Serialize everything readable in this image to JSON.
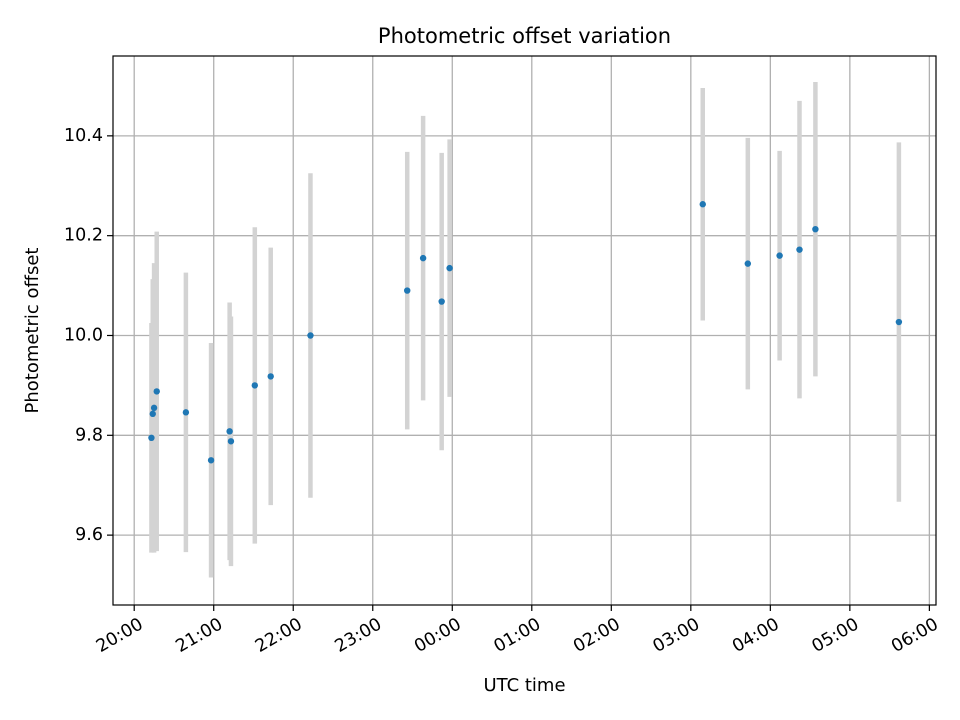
{
  "chart_data": {
    "type": "scatter",
    "title": "Photometric offset variation",
    "xlabel": "UTC time",
    "ylabel": "Photometric offset",
    "x_ticks": [
      "20:00",
      "21:00",
      "22:00",
      "23:00",
      "00:00",
      "01:00",
      "02:00",
      "03:00",
      "04:00",
      "05:00",
      "06:00"
    ],
    "xlim": [
      "19:44",
      "06:05"
    ],
    "y_ticks": [
      "9.6",
      "9.8",
      "10.0",
      "10.2",
      "10.4"
    ],
    "ylim": [
      9.46,
      10.56
    ],
    "grid": true,
    "colors": {
      "marker": "#1f77b4",
      "errorbar": "#d3d3d3",
      "grid": "#b0b0b0"
    },
    "points": [
      {
        "time": "20:13",
        "y": 9.795,
        "err": 0.23
      },
      {
        "time": "20:14",
        "y": 9.843,
        "err": 0.27
      },
      {
        "time": "20:15",
        "y": 9.855,
        "err": 0.29
      },
      {
        "time": "20:17",
        "y": 9.888,
        "err": 0.32
      },
      {
        "time": "20:39",
        "y": 9.846,
        "err": 0.28
      },
      {
        "time": "20:58",
        "y": 9.75,
        "err": 0.235
      },
      {
        "time": "21:12",
        "y": 9.808,
        "err": 0.258
      },
      {
        "time": "21:13",
        "y": 9.788,
        "err": 0.25
      },
      {
        "time": "21:31",
        "y": 9.9,
        "err": 0.317
      },
      {
        "time": "21:43",
        "y": 9.918,
        "err": 0.258
      },
      {
        "time": "22:13",
        "y": 10.0,
        "err": 0.325
      },
      {
        "time": "23:26",
        "y": 10.09,
        "err": 0.278
      },
      {
        "time": "23:38",
        "y": 10.155,
        "err": 0.285
      },
      {
        "time": "23:52",
        "y": 10.068,
        "err": 0.298
      },
      {
        "time": "23:58",
        "y": 10.135,
        "err": 0.258
      },
      {
        "time": "03:09",
        "y": 10.263,
        "err": 0.233
      },
      {
        "time": "03:43",
        "y": 10.144,
        "err": 0.252
      },
      {
        "time": "04:07",
        "y": 10.16,
        "err": 0.21
      },
      {
        "time": "04:22",
        "y": 10.172,
        "err": 0.298
      },
      {
        "time": "04:34",
        "y": 10.213,
        "err": 0.295
      },
      {
        "time": "05:37",
        "y": 10.027,
        "err": 0.36
      }
    ]
  }
}
